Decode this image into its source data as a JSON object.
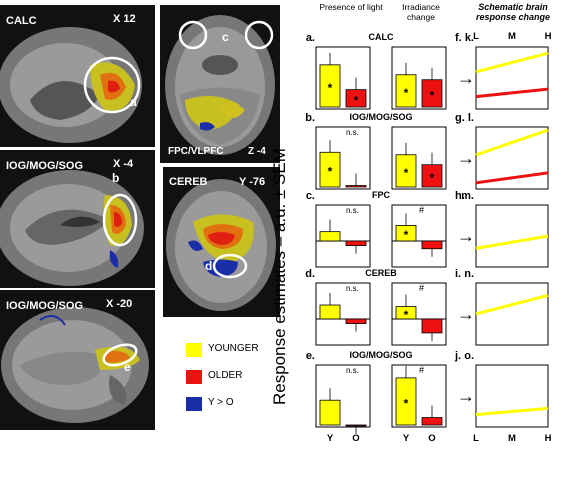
{
  "brain_panels": [
    {
      "region": "CALC",
      "coord": "X 12",
      "circle_label": "a"
    },
    {
      "region": "IOG/MOG/SOG",
      "coord": "X -4",
      "circle_label": "b"
    },
    {
      "region": "IOG/MOG/SOG",
      "coord": "X -20",
      "circle_label": "e"
    },
    {
      "region": "FPC/VLPFC",
      "coord": "Z -4",
      "circle_label": "c"
    },
    {
      "region": "CEREB",
      "coord": "Y -76",
      "circle_label": "d"
    }
  ],
  "legend": [
    {
      "label": "YOUNGER",
      "color": "#ffff00"
    },
    {
      "label": "OLDER",
      "color": "#ee1111"
    },
    {
      "label": "Y > O",
      "color": "#1a2ea8"
    }
  ],
  "headers": {
    "presence": "Presence of light",
    "irradiance": "Irradiance change",
    "schematic": "Schematic brain response change"
  },
  "y_axis_label": "Response estimates – a.u. ± SEM",
  "rows": [
    {
      "region": "CALC",
      "left_letter": "a.",
      "right_letter": "f.",
      "schem_letter": "k."
    },
    {
      "region": "IOG/MOG/SOG",
      "left_letter": "b.",
      "right_letter": "g.",
      "schem_letter": "l."
    },
    {
      "region": "FPC",
      "left_letter": "c.",
      "right_letter": "h.",
      "schem_letter": "m."
    },
    {
      "region": "CEREB",
      "left_letter": "d.",
      "right_letter": "i.",
      "schem_letter": "n."
    },
    {
      "region": "IOG/MOG/SOG",
      "left_letter": "e.",
      "right_letter": "j.",
      "schem_letter": "o."
    }
  ],
  "annotations": {
    "star": "*",
    "ns": "n.s.",
    "hash": "#",
    "arrow": "→"
  },
  "x_ticks": {
    "bars": [
      "Y",
      "O"
    ],
    "schematic": [
      "L",
      "M",
      "H"
    ]
  },
  "colors": {
    "younger": "#ffff00",
    "older": "#ee1111",
    "yo": "#1a2ea8"
  },
  "chart_data": [
    {
      "type": "bar",
      "panel": "a",
      "categories": [
        "Y",
        "O"
      ],
      "values": [
        0.85,
        0.35
      ],
      "sig": [
        "*",
        "*"
      ]
    },
    {
      "type": "bar",
      "panel": "f",
      "categories": [
        "Y",
        "O"
      ],
      "values": [
        0.65,
        0.55
      ],
      "sig": [
        "*",
        "*"
      ]
    },
    {
      "type": "bar",
      "panel": "b",
      "categories": [
        "Y",
        "O"
      ],
      "values": [
        0.7,
        0.03
      ],
      "sig": [
        "*",
        ""
      ],
      "ns": true
    },
    {
      "type": "bar",
      "panel": "g",
      "categories": [
        "Y",
        "O"
      ],
      "values": [
        0.65,
        0.45
      ],
      "sig": [
        "*",
        "*"
      ]
    },
    {
      "type": "bar",
      "panel": "c",
      "categories": [
        "Y",
        "O"
      ],
      "values": [
        0.3,
        -0.15
      ],
      "sig": [
        "",
        ""
      ],
      "ns": true
    },
    {
      "type": "bar",
      "panel": "h",
      "categories": [
        "Y",
        "O"
      ],
      "values": [
        0.5,
        -0.25
      ],
      "sig": [
        "*",
        ""
      ],
      "hash": true
    },
    {
      "type": "bar",
      "panel": "d",
      "categories": [
        "Y",
        "O"
      ],
      "values": [
        0.45,
        -0.15
      ],
      "sig": [
        "",
        ""
      ],
      "ns": true
    },
    {
      "type": "bar",
      "panel": "i",
      "categories": [
        "Y",
        "O"
      ],
      "values": [
        0.4,
        -0.45
      ],
      "sig": [
        "*",
        ""
      ],
      "hash": true
    },
    {
      "type": "bar",
      "panel": "e",
      "categories": [
        "Y",
        "O"
      ],
      "values": [
        0.5,
        -0.02
      ],
      "sig": [
        "",
        ""
      ],
      "ns": true
    },
    {
      "type": "bar",
      "panel": "j",
      "categories": [
        "Y",
        "O"
      ],
      "values": [
        0.95,
        0.15
      ],
      "sig": [
        "*",
        ""
      ],
      "hash": true
    },
    {
      "type": "line",
      "panel": "k",
      "x": [
        "L",
        "M",
        "H"
      ],
      "series": [
        {
          "values": [
            0.6,
            0.75,
            0.9
          ],
          "color": "#ffff00"
        },
        {
          "values": [
            0.2,
            0.26,
            0.32
          ],
          "color": "#ee1111"
        }
      ]
    },
    {
      "type": "line",
      "panel": "l",
      "x": [
        "L",
        "M",
        "H"
      ],
      "series": [
        {
          "values": [
            0.55,
            0.75,
            0.95
          ],
          "color": "#ffff00"
        },
        {
          "values": [
            0.1,
            0.18,
            0.26
          ],
          "color": "#ee1111"
        }
      ]
    },
    {
      "type": "line",
      "panel": "m",
      "x": [
        "L",
        "M",
        "H"
      ],
      "series": [
        {
          "values": [
            0.3,
            0.4,
            0.5
          ],
          "color": "#ffff00"
        }
      ]
    },
    {
      "type": "line",
      "panel": "n",
      "x": [
        "L",
        "M",
        "H"
      ],
      "series": [
        {
          "values": [
            0.5,
            0.65,
            0.8
          ],
          "color": "#ffff00"
        }
      ]
    },
    {
      "type": "line",
      "panel": "o",
      "x": [
        "L",
        "M",
        "H"
      ],
      "series": [
        {
          "values": [
            0.2,
            0.25,
            0.3
          ],
          "color": "#ffff00"
        }
      ]
    }
  ]
}
